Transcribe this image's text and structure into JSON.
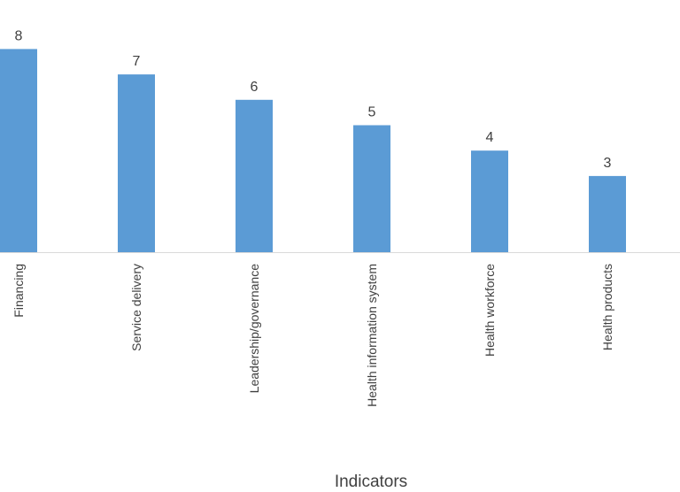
{
  "chart_data": {
    "type": "bar",
    "categories": [
      "Financing",
      "Service delivery",
      "Leadership/governance",
      "Health information system",
      "Health workforce",
      "Health products"
    ],
    "values": [
      8,
      7,
      6,
      5,
      4,
      3
    ],
    "xlabel": "Indicators",
    "ylabel": "",
    "ylim": [
      0,
      8
    ],
    "grid": false,
    "legend": "none",
    "data_labels": true,
    "colors": {
      "bar": "#5B9BD5",
      "axis": "#D9D9D9",
      "text": "#404040"
    }
  }
}
